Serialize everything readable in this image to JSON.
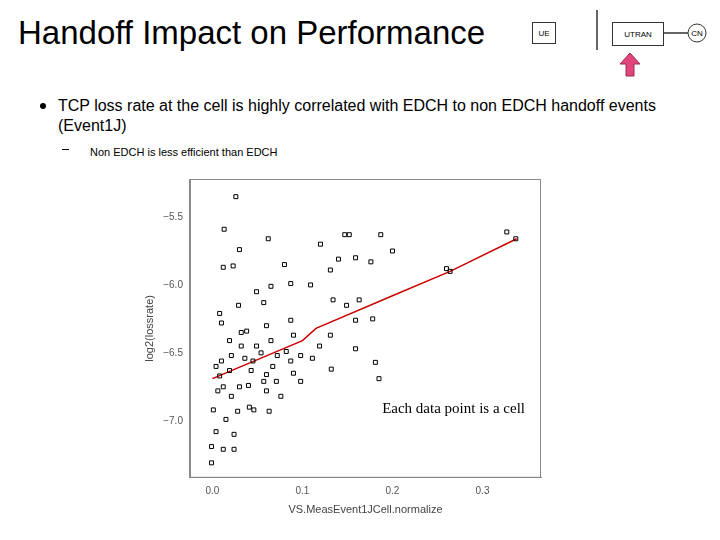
{
  "slide": {
    "title": "Handoff Impact on Performance",
    "bullets": [
      {
        "text": "TCP loss rate at the cell is highly correlated with EDCH to non EDCH handoff events (Event1J)",
        "sub": [
          "Non EDCH is less efficient than EDCH"
        ]
      }
    ],
    "diagram": [
      "UE",
      "UTRAN",
      "CN"
    ]
  },
  "chart_data": {
    "type": "scatter",
    "x_label": "VS.MeasEvent1JCell.normalize",
    "y_label": "log2(lossrate)",
    "annotations": [
      "Each data point is a cell"
    ],
    "xlim": [
      -0.025,
      0.365
    ],
    "ylim": [
      -7.42,
      -5.22
    ],
    "xticks": [
      {
        "value": 0,
        "label": "0.0"
      },
      0.1,
      0.2,
      0.3
    ],
    "yticks": [
      {
        "value": -7,
        "label": "−7.0"
      },
      {
        "value": -6.5,
        "label": "−6.5"
      },
      {
        "value": -6,
        "label": "−6.0"
      },
      {
        "value": -5.5,
        "label": "−5.5"
      }
    ],
    "grid": false,
    "series": [
      {
        "type": "scatter",
        "color": "#000000",
        "marker": "square",
        "x": [
          0.026,
          0.013,
          0.03,
          0.062,
          0.08,
          0.012,
          0.023,
          0.12,
          0.147,
          0.152,
          0.14,
          0.131,
          0.159,
          0.176,
          0.187,
          0.2,
          0.264,
          0.26,
          0.327,
          0.337,
          0.049,
          0.065,
          0.087,
          0.109,
          0.057,
          0.029,
          0.008,
          0.01,
          0.038,
          0.06,
          0.087,
          0.09,
          0.134,
          0.149,
          0.159,
          0.163,
          0.131,
          0.178,
          0.159,
          0.119,
          0.181,
          0.185,
          0.132,
          0.09,
          0.098,
          0.067,
          0.054,
          0.032,
          0.021,
          0.01,
          0.004,
          0.008,
          0.019,
          0.036,
          0.043,
          0.057,
          0.06,
          0.076,
          0.041,
          0.021,
          0.001,
          0.012,
          0.03,
          0.006,
          0.028,
          0.063,
          0.046,
          -0.001,
          -0.001,
          0.024,
          0.012,
          0.024,
          0.019,
          0.032,
          0.049,
          0.065,
          0.082,
          0.098,
          0.111,
          0.072,
          0.045,
          0.06,
          0.04,
          0.071,
          0.087,
          0.015,
          0.004
        ],
        "values": [
          -5.35,
          -5.59,
          -5.74,
          -5.66,
          -5.85,
          -5.87,
          -5.86,
          -5.7,
          -5.63,
          -5.63,
          -5.81,
          -5.89,
          -5.8,
          -5.83,
          -5.63,
          -5.75,
          -5.9,
          -5.88,
          -5.61,
          -5.66,
          -6.05,
          -6.01,
          -5.99,
          -6.0,
          -6.13,
          -6.15,
          -6.21,
          -6.28,
          -6.34,
          -6.3,
          -6.26,
          -6.37,
          -6.11,
          -6.15,
          -6.26,
          -6.11,
          -6.37,
          -6.25,
          -6.47,
          -6.45,
          -6.57,
          -6.69,
          -6.62,
          -6.65,
          -6.71,
          -6.6,
          -6.5,
          -6.45,
          -6.52,
          -6.56,
          -6.6,
          -6.67,
          -6.63,
          -6.54,
          -6.63,
          -6.71,
          -6.78,
          -6.82,
          -6.9,
          -6.82,
          -6.92,
          -6.75,
          -6.75,
          -6.78,
          -6.93,
          -6.93,
          -6.92,
          -7.19,
          -7.31,
          -7.1,
          -7.21,
          -7.21,
          -6.41,
          -6.35,
          -6.45,
          -6.41,
          -6.49,
          -6.52,
          -6.54,
          -6.52,
          -6.56,
          -6.66,
          -6.74,
          -6.71,
          -6.56,
          -6.99,
          -7.08
        ]
      },
      {
        "type": "line",
        "color": "#cc0000",
        "marker": "none",
        "line_style": "solid",
        "x": [
          0.0,
          0.05,
          0.1,
          0.115,
          0.2,
          0.264,
          0.338
        ],
        "values": [
          -6.69,
          -6.55,
          -6.41,
          -6.32,
          -6.08,
          -5.9,
          -5.66
        ]
      }
    ]
  }
}
